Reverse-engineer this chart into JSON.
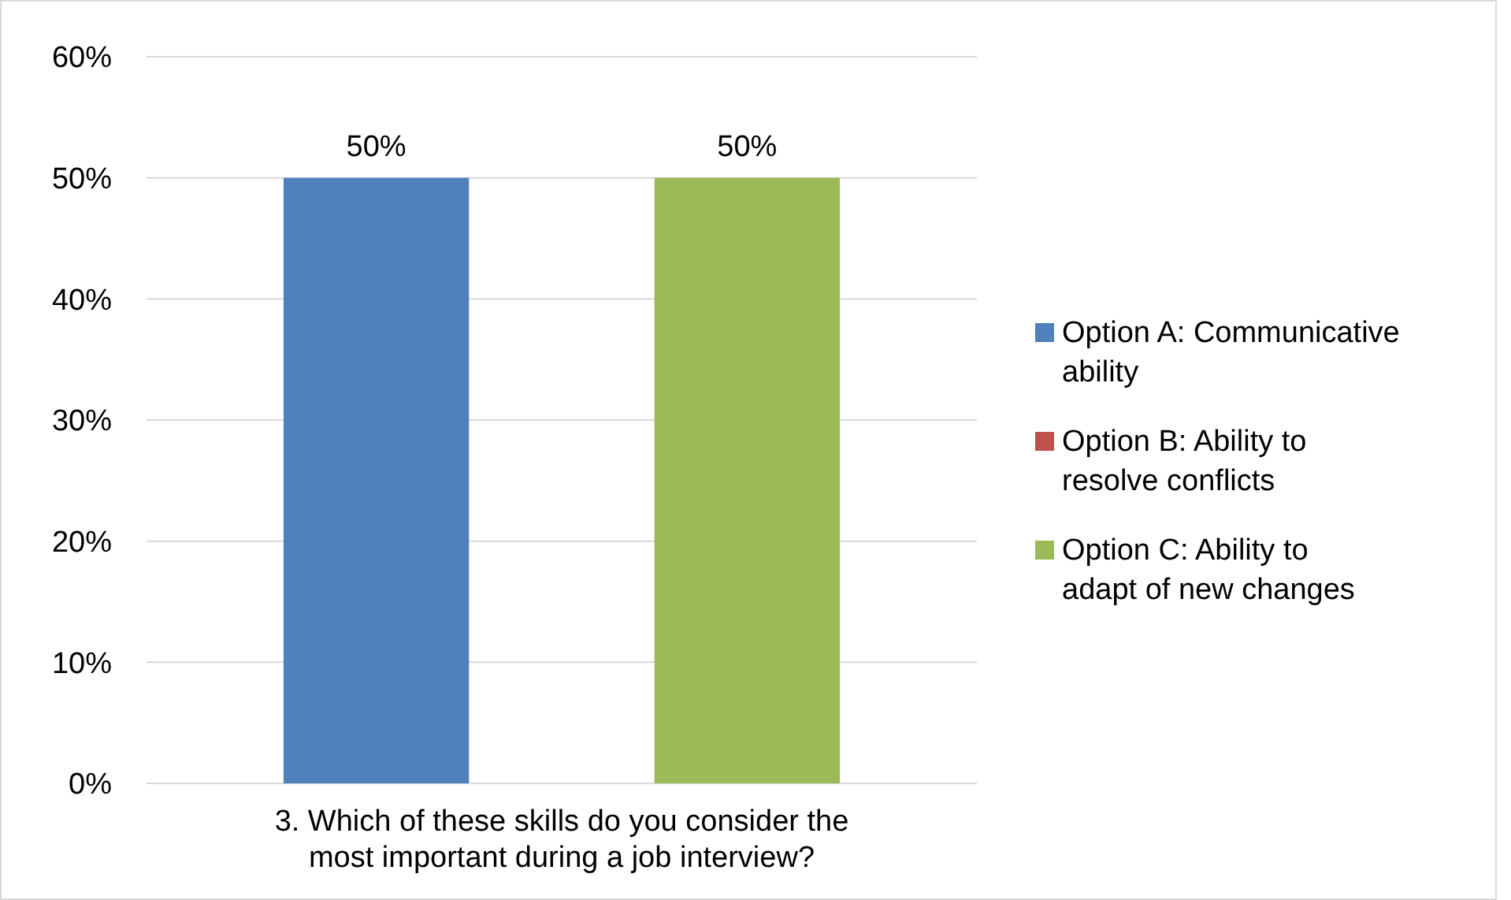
{
  "chart_data": {
    "type": "bar",
    "categories": [
      "3. Which of these skills do you consider the most important during a job interview?"
    ],
    "series": [
      {
        "name": "Option A: Communicative ability",
        "color": "#4f81bd",
        "values": [
          50
        ],
        "value_labels": [
          "50%"
        ]
      },
      {
        "name": "Option B: Ability to resolve conflicts",
        "color": "#c0504d",
        "values": [
          0
        ],
        "value_labels": [
          null
        ]
      },
      {
        "name": "Option C: Ability to adapt of new changes",
        "color": "#9bbb59",
        "values": [
          50
        ],
        "value_labels": [
          "50%"
        ]
      }
    ],
    "ylim": [
      0,
      60
    ],
    "yticks": [
      {
        "value": 0,
        "label": "0%"
      },
      {
        "value": 10,
        "label": "10%"
      },
      {
        "value": 20,
        "label": "20%"
      },
      {
        "value": 30,
        "label": "30%"
      },
      {
        "value": 40,
        "label": "40%"
      },
      {
        "value": 50,
        "label": "50%"
      },
      {
        "value": 60,
        "label": "60%"
      }
    ],
    "grid": "y",
    "legend": "right"
  }
}
